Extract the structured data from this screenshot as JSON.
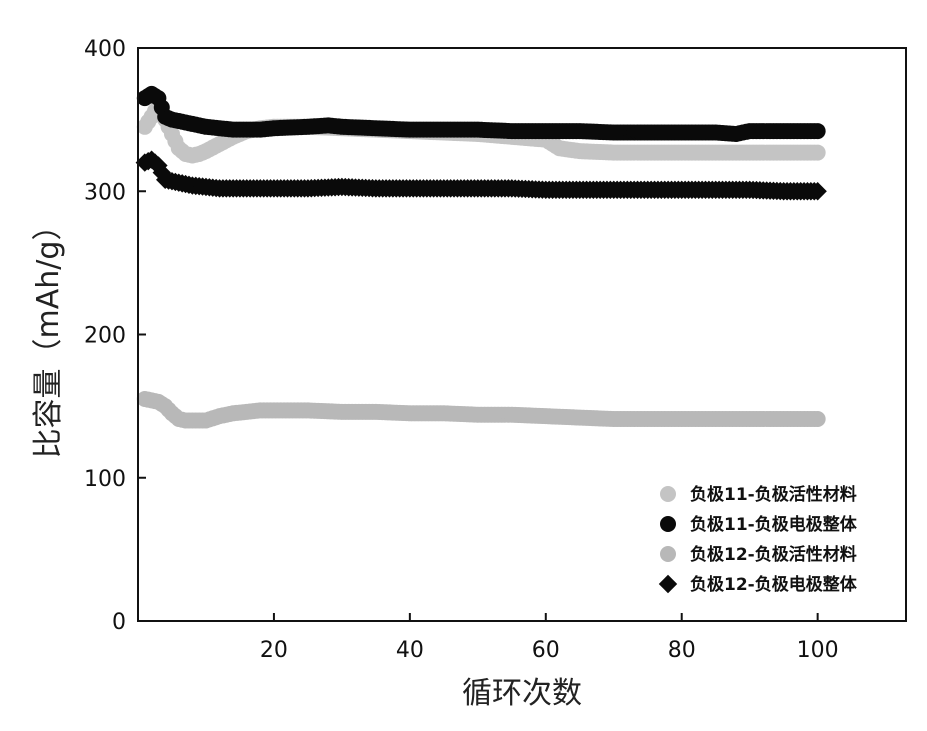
{
  "chart_data": {
    "type": "scatter",
    "xlabel": "循环次数",
    "ylabel": "比容量（mAh/g）",
    "xlim": [
      0,
      113
    ],
    "ylim": [
      0,
      400
    ],
    "xticks": [
      20,
      40,
      60,
      80,
      100
    ],
    "yticks": [
      0,
      100,
      200,
      300,
      400
    ],
    "legend_position": "bottom-right",
    "grid": false,
    "series": [
      {
        "name": "负极11-负极活性材料",
        "marker": "circle",
        "color": "#c4c4c4",
        "x": [
          1,
          2,
          3,
          4,
          5,
          6,
          7,
          8,
          9,
          10,
          12,
          14,
          16,
          18,
          20,
          25,
          30,
          35,
          40,
          45,
          50,
          55,
          60,
          62,
          65,
          70,
          75,
          80,
          85,
          90,
          95,
          100
        ],
        "y": [
          345,
          352,
          360,
          350,
          340,
          330,
          326,
          325,
          326,
          328,
          333,
          338,
          342,
          344,
          345,
          345,
          344,
          343,
          342,
          341,
          340,
          338,
          336,
          330,
          328,
          327,
          327,
          327,
          327,
          327,
          327,
          327
        ]
      },
      {
        "name": "负极11-负极电极整体",
        "marker": "circle",
        "color": "#0a0a0a",
        "x": [
          1,
          2,
          3,
          4,
          5,
          6,
          7,
          8,
          10,
          12,
          14,
          16,
          18,
          20,
          25,
          28,
          30,
          35,
          40,
          45,
          50,
          55,
          60,
          65,
          70,
          75,
          80,
          85,
          88,
          90,
          95,
          100
        ],
        "y": [
          365,
          368,
          365,
          352,
          350,
          349,
          348,
          347,
          345,
          344,
          343,
          343,
          343,
          344,
          345,
          346,
          345,
          344,
          343,
          343,
          343,
          342,
          342,
          342,
          341,
          341,
          341,
          341,
          340,
          342,
          342,
          342
        ]
      },
      {
        "name": "负极12-负极活性材料",
        "marker": "circle",
        "color": "#b8b8b8",
        "x": [
          1,
          2,
          3,
          4,
          5,
          6,
          7,
          8,
          9,
          10,
          12,
          14,
          16,
          18,
          20,
          25,
          30,
          35,
          40,
          45,
          50,
          55,
          60,
          65,
          70,
          75,
          80,
          85,
          90,
          95,
          100
        ],
        "y": [
          155,
          154,
          153,
          150,
          145,
          141,
          140,
          140,
          140,
          140,
          143,
          145,
          146,
          147,
          147,
          147,
          146,
          146,
          145,
          145,
          144,
          144,
          143,
          142,
          141,
          141,
          141,
          141,
          141,
          141,
          141
        ]
      },
      {
        "name": "负极12-负极电极整体",
        "marker": "diamond",
        "color": "#0a0a0a",
        "x": [
          1,
          2,
          3,
          4,
          5,
          6,
          7,
          8,
          10,
          12,
          14,
          16,
          18,
          20,
          25,
          30,
          35,
          40,
          45,
          50,
          55,
          60,
          65,
          70,
          75,
          80,
          85,
          90,
          95,
          100
        ],
        "y": [
          320,
          322,
          318,
          308,
          307,
          306,
          305,
          304,
          303,
          302,
          302,
          302,
          302,
          302,
          302,
          303,
          302,
          302,
          302,
          302,
          302,
          301,
          301,
          301,
          301,
          301,
          301,
          301,
          300,
          300
        ]
      }
    ]
  }
}
